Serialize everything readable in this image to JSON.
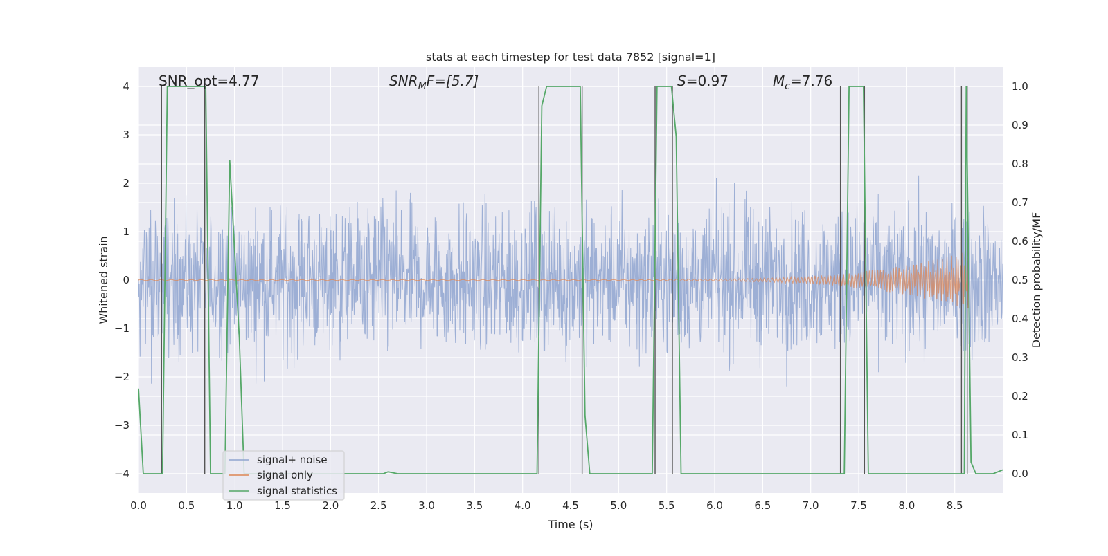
{
  "chart_data": {
    "type": "line",
    "title": "stats at each timestep for test data 7852 [signal=1]",
    "xlabel": "Time (s)",
    "ylabel": "Whitened strain",
    "y2label": "Detection probability/MF",
    "xlim": [
      0,
      9.0
    ],
    "ylim": [
      -4.4,
      4.4
    ],
    "y2lim": [
      -0.05,
      1.05
    ],
    "grid": true,
    "legend_position": "lower-left",
    "x_ticks": [
      "0.0",
      "0.5",
      "1.0",
      "1.5",
      "2.0",
      "2.5",
      "3.0",
      "3.5",
      "4.0",
      "4.5",
      "5.0",
      "5.5",
      "6.0",
      "6.5",
      "7.0",
      "7.5",
      "8.0",
      "8.5"
    ],
    "x_tick_values": [
      0,
      0.5,
      1,
      1.5,
      2,
      2.5,
      3,
      3.5,
      4,
      4.5,
      5,
      5.5,
      6,
      6.5,
      7,
      7.5,
      8,
      8.5
    ],
    "y_ticks": [
      "4",
      "3",
      "2",
      "1",
      "0",
      "−1",
      "−2",
      "−3",
      "−4"
    ],
    "y_tick_values": [
      4,
      3,
      2,
      1,
      0,
      -1,
      -2,
      -3,
      -4
    ],
    "y2_ticks": [
      "1.0",
      "0.9",
      "0.8",
      "0.7",
      "0.6",
      "0.5",
      "0.4",
      "0.3",
      "0.2",
      "0.1",
      "0.0"
    ],
    "y2_tick_values": [
      1.0,
      0.9,
      0.8,
      0.7,
      0.6,
      0.5,
      0.4,
      0.3,
      0.2,
      0.1,
      0.0
    ],
    "annotations": {
      "snr_opt": "SNR_opt=4.77",
      "snr_mf_base": "SNR",
      "snr_mf_sub": "M",
      "snr_mf_rest": "F=[5.7]",
      "s_base": "S",
      "s_rest": "=0.97",
      "mc_base": "M",
      "mc_sub": "c",
      "mc_rest": "=7.76"
    },
    "series": [
      {
        "name": "signal+ noise",
        "color": "#8fa5d0",
        "description_kind": "noise",
        "envelope": {
          "typical_max": 2.2,
          "typical_min": -2.2,
          "extreme_max": 3.8,
          "extreme_min": -4.0
        }
      },
      {
        "name": "signal only",
        "color": "#dd8452",
        "description_kind": "chirp",
        "envelope": {
          "start_x": 5.5,
          "end_x": 8.65,
          "start_amp": 0.02,
          "end_amp": 0.6
        }
      },
      {
        "name": "signal statistics",
        "color": "#55a868",
        "axis": "right",
        "x": [
          0.0,
          0.05,
          0.25,
          0.3,
          0.7,
          0.75,
          0.9,
          0.95,
          1.05,
          1.1,
          2.55,
          2.6,
          2.7,
          2.75,
          4.1,
          4.15,
          4.2,
          4.25,
          4.6,
          4.65,
          4.7,
          4.75,
          5.35,
          5.4,
          5.55,
          5.6,
          5.65,
          5.7,
          7.3,
          7.35,
          7.4,
          7.5,
          7.55,
          7.6,
          7.65,
          8.55,
          8.6,
          8.62,
          8.67,
          8.72,
          8.9,
          9.0
        ],
        "y": [
          0.22,
          0.0,
          0.0,
          1.0,
          1.0,
          0.0,
          0.0,
          0.81,
          0.35,
          0.0,
          0.0,
          0.005,
          0.0,
          0.0,
          0.0,
          0.0,
          0.95,
          1.0,
          1.0,
          0.15,
          0.0,
          0.0,
          0.0,
          1.0,
          1.0,
          0.87,
          0.0,
          0.0,
          0.0,
          0.0,
          1.0,
          1.0,
          1.0,
          0.0,
          0.0,
          0.0,
          0.0,
          1.0,
          0.03,
          0.0,
          0.0,
          0.01
        ]
      }
    ],
    "vertical_markers": [
      0.24,
      0.69,
      4.17,
      4.62,
      5.38,
      5.56,
      7.31,
      7.56,
      8.57,
      8.63
    ]
  }
}
